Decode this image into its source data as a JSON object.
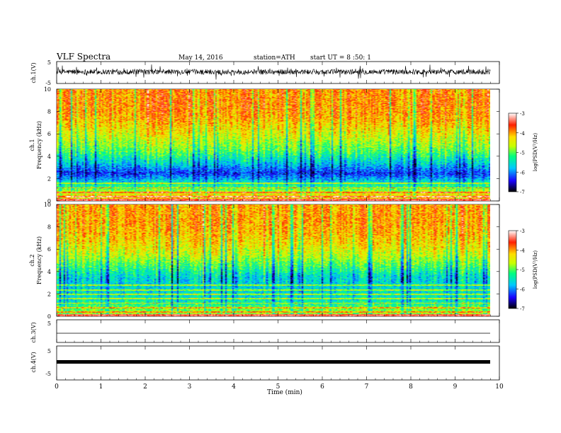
{
  "header": {
    "title": "VLF Spectra",
    "date": "May 14, 2016",
    "station": "station=ATH",
    "start": "start UT = 8 :50: 1"
  },
  "chart_data": [
    {
      "type": "line",
      "panel": "ch1-waveform",
      "ylabel": "ch.1(V)",
      "ylim": [
        -5,
        5
      ],
      "yticks": [
        "5",
        "-5"
      ],
      "xlim": [
        0,
        10
      ],
      "series": [
        {
          "mean_v": 0.3,
          "amplitude_v": 2.0,
          "color": "#000000"
        }
      ]
    },
    {
      "type": "heatmap",
      "panel": "ch1-spectrogram",
      "ylabel": "ch.1",
      "ylabel2": "Frequency (kHz)",
      "ylim": [
        0,
        10
      ],
      "yticks": [
        "0",
        "2",
        "4",
        "6",
        "8",
        "10"
      ],
      "xlim": [
        0,
        9.8
      ],
      "colorbar": {
        "label": "log(PSD(V²/Hz)",
        "range": [
          -7,
          -3
        ],
        "ticks": [
          "-3",
          "-4",
          "-5",
          "-6",
          "-7"
        ],
        "colors": [
          "#000000",
          "#1a00ff",
          "#00c8ff",
          "#00ff80",
          "#c8ff00",
          "#ffdd00",
          "#ff2000",
          "#ffffff"
        ]
      },
      "profile": [
        {
          "freq_khz": 0.5,
          "log_psd": -4.2
        },
        {
          "freq_khz": 1.5,
          "log_psd": -5.4
        },
        {
          "freq_khz": 2.5,
          "log_psd": -6.3
        },
        {
          "freq_khz": 3.5,
          "log_psd": -5.6
        },
        {
          "freq_khz": 4.5,
          "log_psd": -5.0
        },
        {
          "freq_khz": 5.5,
          "log_psd": -4.6
        },
        {
          "freq_khz": 6.5,
          "log_psd": -4.3
        },
        {
          "freq_khz": 7.5,
          "log_psd": -4.0
        },
        {
          "freq_khz": 8.5,
          "log_psd": -3.9
        },
        {
          "freq_khz": 9.5,
          "log_psd": -3.9
        }
      ]
    },
    {
      "type": "heatmap",
      "panel": "ch2-spectrogram",
      "ylabel": "ch.2",
      "ylabel2": "Frequency (kHz)",
      "ylim": [
        0,
        10
      ],
      "yticks": [
        "0",
        "2",
        "4",
        "6",
        "8",
        "10"
      ],
      "xlim": [
        0,
        9.8
      ],
      "colorbar": {
        "label": "log(PSD(V²/Hz)",
        "range": [
          -7,
          -3
        ],
        "ticks": [
          "-3",
          "-4",
          "-5",
          "-6",
          "-7"
        ],
        "colors": [
          "#000000",
          "#1a00ff",
          "#00c8ff",
          "#00ff80",
          "#c8ff00",
          "#ffdd00",
          "#ff2000",
          "#ffffff"
        ]
      },
      "profile": [
        {
          "freq_khz": 0.5,
          "log_psd": -4.8
        },
        {
          "freq_khz": 1.5,
          "log_psd": -5.5
        },
        {
          "freq_khz": 2.5,
          "log_psd": -5.6
        },
        {
          "freq_khz": 3.5,
          "log_psd": -5.6
        },
        {
          "freq_khz": 4.5,
          "log_psd": -5.1
        },
        {
          "freq_khz": 5.5,
          "log_psd": -4.6
        },
        {
          "freq_khz": 6.5,
          "log_psd": -4.3
        },
        {
          "freq_khz": 7.5,
          "log_psd": -4.1
        },
        {
          "freq_khz": 8.5,
          "log_psd": -4.0
        },
        {
          "freq_khz": 9.5,
          "log_psd": -4.0
        }
      ]
    },
    {
      "type": "line",
      "panel": "ch3-waveform",
      "ylabel": "ch.3(V)",
      "ylim": [
        -5,
        5
      ],
      "yticks": [
        "5"
      ],
      "xlim": [
        0,
        9.8
      ],
      "series": [
        {
          "mean_v": 0.0,
          "amplitude_v": 0.05,
          "color": "#000000"
        }
      ]
    },
    {
      "type": "line",
      "panel": "ch4-waveform",
      "ylabel": "ch.4(V)",
      "ylim": [
        -5,
        5
      ],
      "yticks": [
        "5",
        "-5"
      ],
      "xlim": [
        0,
        9.8
      ],
      "series": [
        {
          "mean_v": 0.0,
          "amplitude_v": 0.15,
          "color": "#000000"
        }
      ]
    }
  ],
  "x_axis": {
    "label": "Time (min)",
    "range": [
      0,
      10
    ],
    "ticks": [
      "0",
      "1",
      "2",
      "3",
      "4",
      "5",
      "6",
      "7",
      "8",
      "9",
      "10"
    ]
  }
}
